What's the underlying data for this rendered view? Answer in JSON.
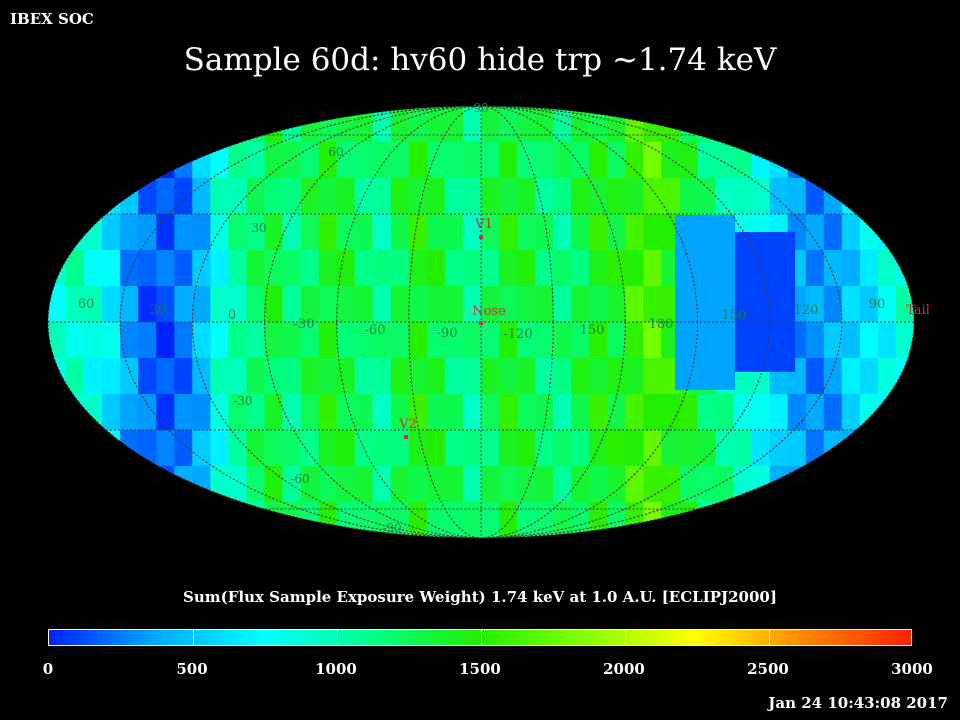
{
  "header": {
    "label": "IBEX SOC"
  },
  "title": "Sample 60d: hv60 hide trp ~1.74 keV",
  "map": {
    "projection": "mollweide",
    "latitude_labels": [
      {
        "text": "90",
        "lat": 90
      },
      {
        "text": "60",
        "lat": 60
      },
      {
        "text": "30",
        "lat": 30
      },
      {
        "text": "-30",
        "lat": -30
      },
      {
        "text": "-60",
        "lat": -60
      },
      {
        "text": "-90",
        "lat": -90
      }
    ],
    "longitude_labels": [
      "60",
      "30",
      "0",
      "-30",
      "-60",
      "-90",
      "-120",
      "150",
      "180",
      "150",
      "120",
      "90"
    ],
    "markers": [
      {
        "name": "V1",
        "label": "V1"
      },
      {
        "name": "Nose",
        "label": "Nose"
      },
      {
        "name": "V2",
        "label": "V2"
      },
      {
        "name": "Tail",
        "label": "Tail"
      }
    ],
    "marker_color": "#c83232",
    "grid_color": "#3a3a3a"
  },
  "colorbar": {
    "title": "Sum(Flux Sample Exposure Weight)  1.74 keV at 1.0 A.U. [ECLIPJ2000]",
    "min": 0,
    "max": 3000,
    "ticks": [
      "0",
      "500",
      "1000",
      "1500",
      "2000",
      "2500",
      "3000"
    ],
    "colors": [
      "#0022ff",
      "#00aaff",
      "#00ffff",
      "#00ff88",
      "#22ee00",
      "#88ff00",
      "#ffff00",
      "#ff8800",
      "#ff2200"
    ]
  },
  "timestamp": "Jan 24 10:43:08 2017"
}
